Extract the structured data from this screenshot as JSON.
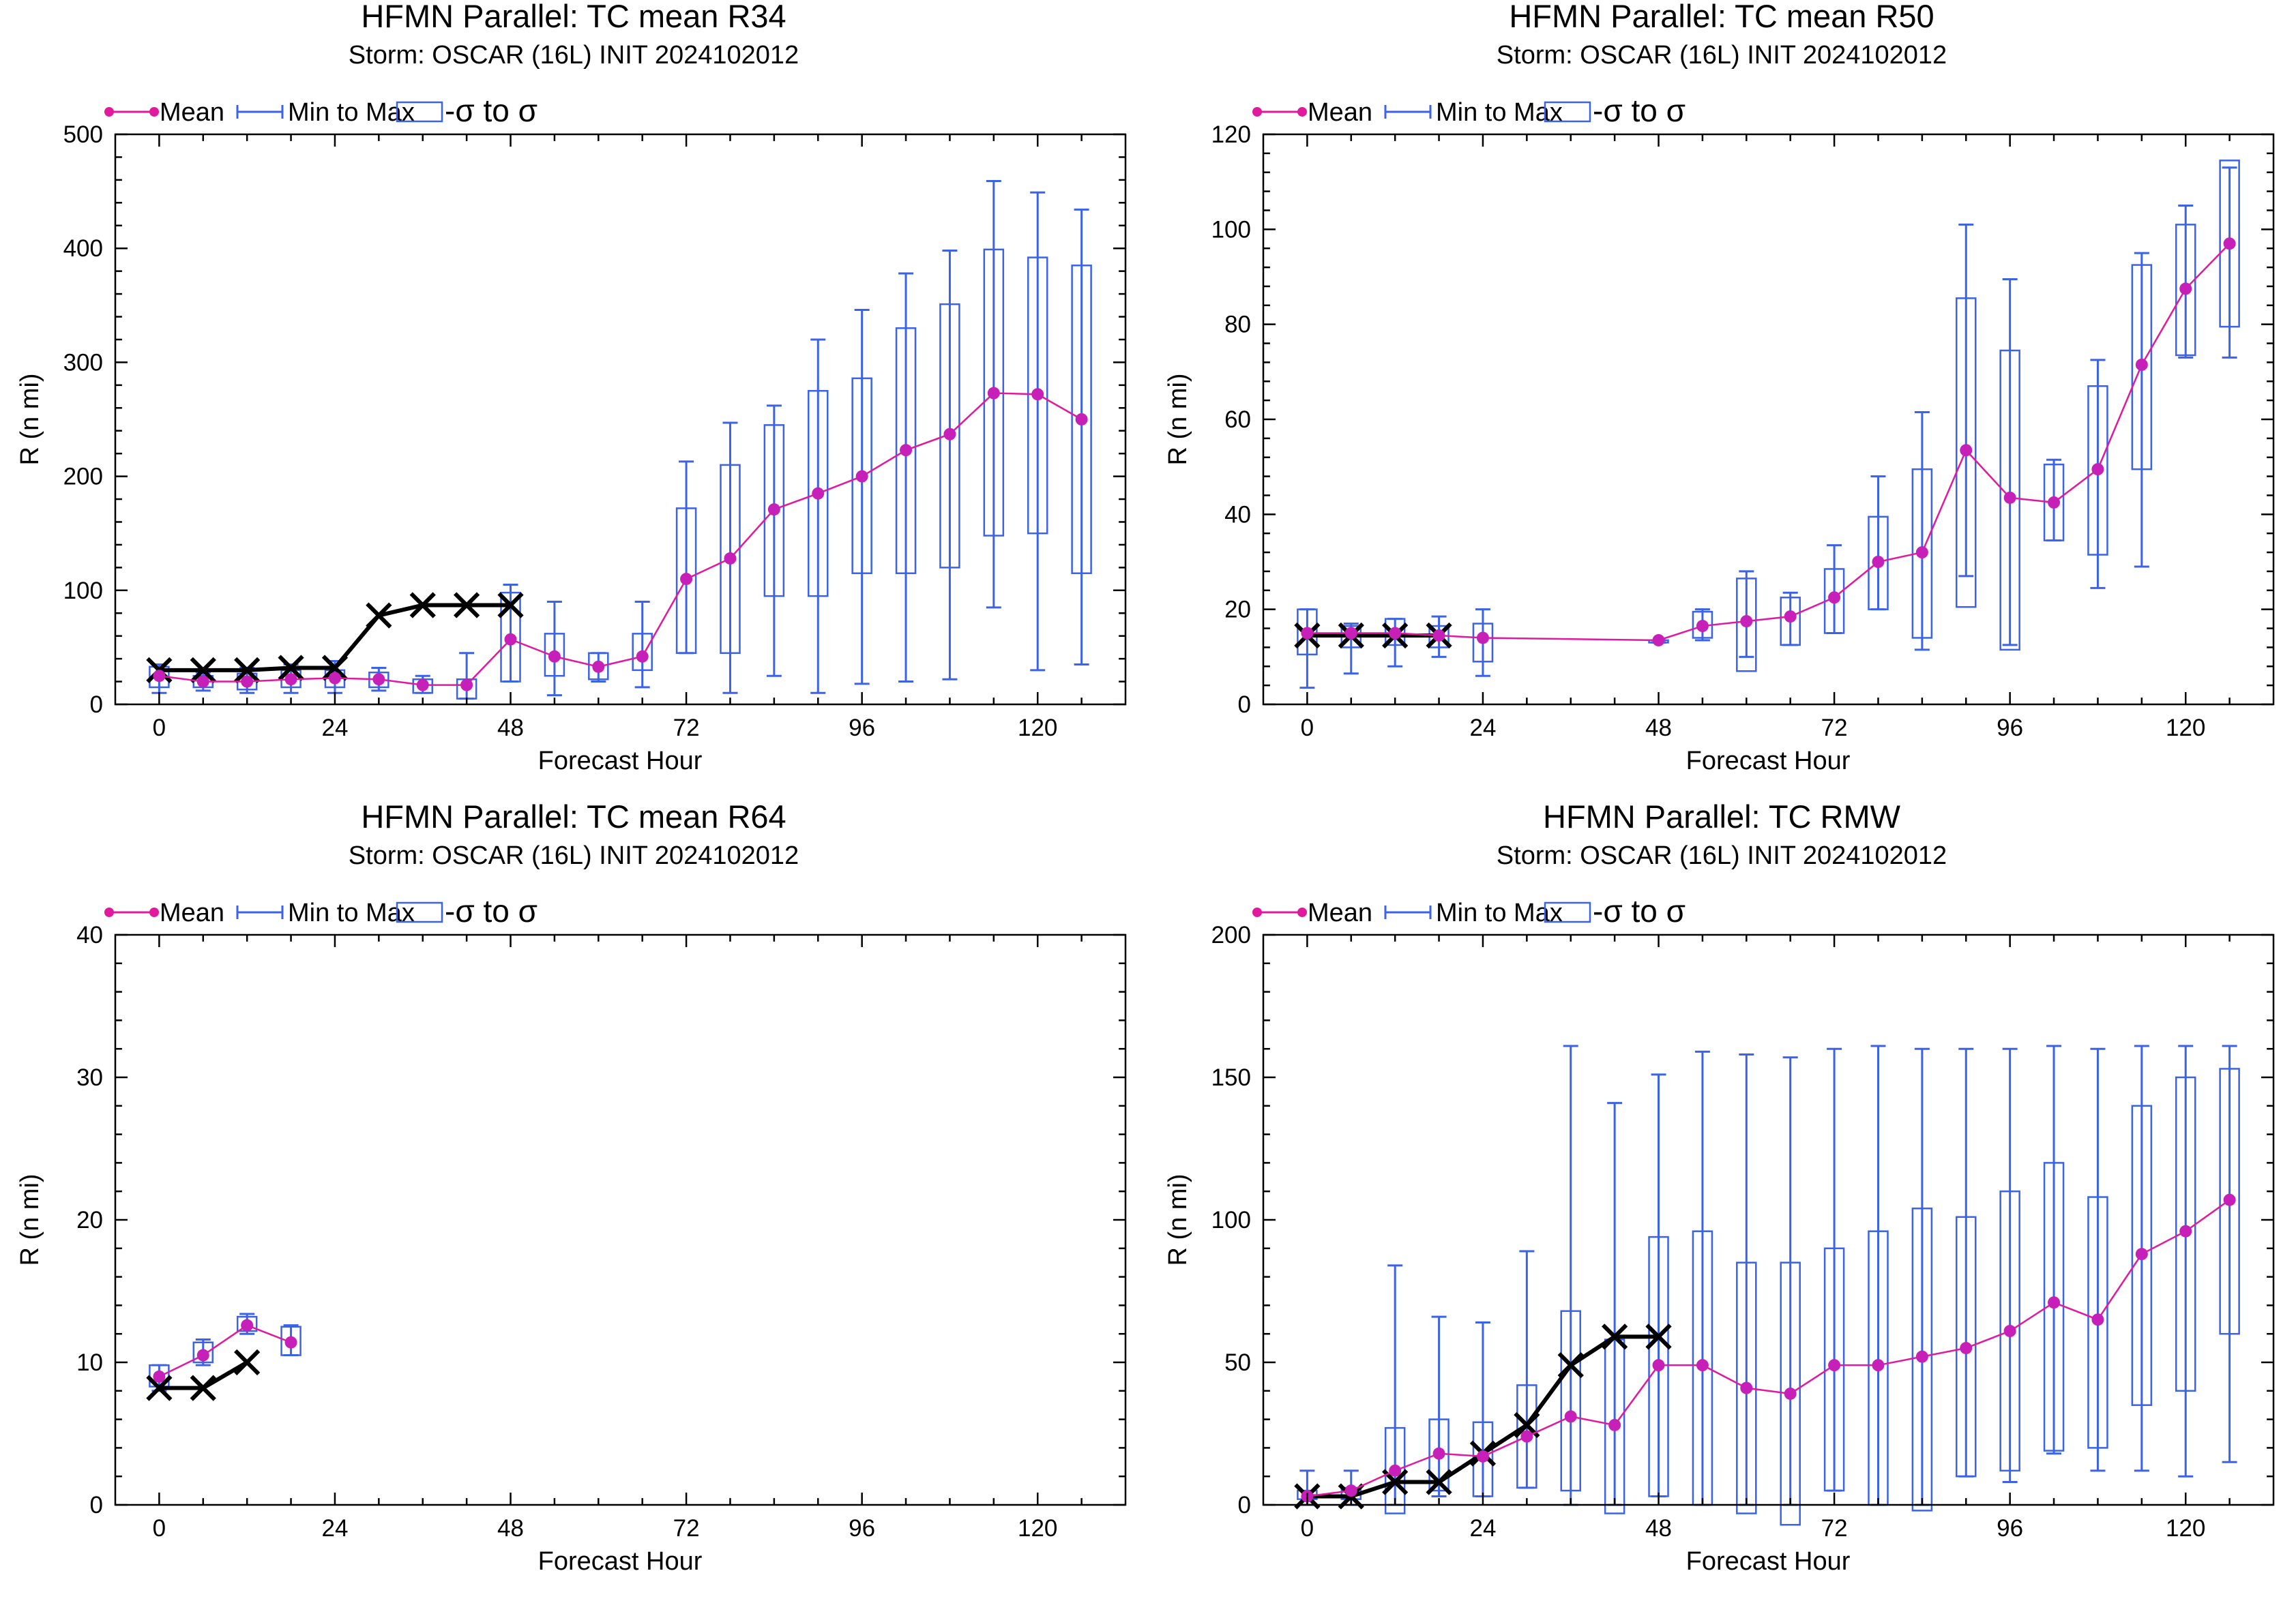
{
  "legend": {
    "mean_label": "Mean",
    "minmax_label": "Min to Max",
    "sigma_label": "-σ to σ"
  },
  "colors": {
    "mean": "#e0199d",
    "mean_dot": "#c620b9",
    "minmax": "#3b62e8",
    "box": "#3b62e8",
    "obs": "#000000"
  },
  "charts": [
    {
      "title": "HFMN Parallel: TC mean R34",
      "subtitle": "Storm: OSCAR (16L) INIT 2024102012",
      "xlabel": "Forecast Hour",
      "ylabel": "R (n mi)",
      "ylim": [
        0,
        500
      ],
      "yticks": [
        0,
        100,
        200,
        300,
        400,
        500
      ],
      "ytick_labels": [
        "0",
        "100",
        "200",
        "300",
        "400",
        "500"
      ]
    },
    {
      "title": "HFMN Parallel: TC mean R50",
      "subtitle": "Storm: OSCAR (16L) INIT 2024102012",
      "xlabel": "Forecast Hour",
      "ylabel": "R (n mi)",
      "ylim": [
        0,
        120
      ],
      "yticks": [
        0,
        20,
        40,
        60,
        80,
        100,
        120
      ],
      "ytick_labels": [
        "0",
        "20",
        "40",
        "60",
        "80",
        "100",
        "120"
      ]
    },
    {
      "title": "HFMN Parallel: TC mean R64",
      "subtitle": "Storm: OSCAR (16L) INIT 2024102012",
      "xlabel": "Forecast Hour",
      "ylabel": "R (n mi)",
      "ylim": [
        0,
        40
      ],
      "yticks": [
        0,
        10,
        20,
        30,
        40
      ],
      "ytick_labels": [
        "0",
        "10",
        "20",
        "30",
        "40"
      ]
    },
    {
      "title": "HFMN Parallel: TC RMW",
      "subtitle": "Storm: OSCAR (16L) INIT 2024102012",
      "xlabel": "Forecast Hour",
      "ylabel": "R (n mi)",
      "ylim": [
        0,
        200
      ],
      "yticks": [
        0,
        50,
        100,
        150,
        200
      ],
      "ytick_labels": [
        "0",
        "50",
        "100",
        "150",
        "200"
      ]
    }
  ],
  "chart_data": [
    {
      "type": "line",
      "title": "HFMN Parallel: TC mean R34",
      "subtitle": "Storm: OSCAR (16L) INIT 2024102012",
      "xlabel": "Forecast Hour",
      "ylabel": "R (n mi)",
      "xlim": [
        -6,
        132
      ],
      "ylim": [
        0,
        500
      ],
      "xticks": [
        0,
        24,
        48,
        72,
        96,
        120
      ],
      "yticks": [
        0,
        100,
        200,
        300,
        400,
        500
      ],
      "mean": {
        "x": [
          0,
          6,
          12,
          18,
          24,
          30,
          36,
          42,
          48,
          54,
          60,
          66,
          72,
          78,
          84,
          90,
          96,
          102,
          108,
          114,
          120,
          126
        ],
        "y": [
          25,
          20,
          20,
          22,
          23,
          22,
          17,
          17,
          57,
          42,
          33,
          42,
          110,
          128,
          171,
          185,
          200,
          223,
          237,
          273,
          272,
          250
        ]
      },
      "minmax": {
        "x": [
          0,
          6,
          12,
          18,
          24,
          30,
          36,
          42,
          48,
          54,
          60,
          66,
          72,
          78,
          84,
          90,
          96,
          102,
          108,
          114,
          120,
          126
        ],
        "min": [
          10,
          12,
          10,
          10,
          10,
          12,
          10,
          5,
          20,
          8,
          20,
          15,
          45,
          10,
          25,
          10,
          18,
          20,
          22,
          85,
          30,
          35
        ],
        "max": [
          35,
          28,
          32,
          35,
          38,
          32,
          25,
          45,
          105,
          90,
          45,
          90,
          213,
          247,
          262,
          320,
          346,
          378,
          398,
          459,
          449,
          434
        ]
      },
      "sigma": {
        "x": [
          0,
          6,
          12,
          18,
          24,
          30,
          36,
          42,
          48,
          54,
          60,
          66,
          72,
          78,
          84,
          90,
          96,
          102,
          108,
          114,
          120,
          126
        ],
        "low": [
          15,
          15,
          13,
          15,
          15,
          15,
          10,
          5,
          20,
          25,
          22,
          30,
          45,
          45,
          95,
          95,
          115,
          115,
          120,
          148,
          150,
          115
        ],
        "high": [
          33,
          25,
          27,
          30,
          30,
          28,
          22,
          22,
          98,
          62,
          45,
          62,
          172,
          210,
          245,
          275,
          286,
          330,
          351,
          399,
          392,
          385
        ]
      },
      "observed": {
        "x": [
          0,
          6,
          12,
          18,
          24,
          30,
          36,
          42,
          48
        ],
        "y": [
          30,
          30,
          30,
          32,
          32,
          78,
          87,
          87,
          87
        ]
      }
    },
    {
      "type": "line",
      "title": "HFMN Parallel: TC mean R50",
      "subtitle": "Storm: OSCAR (16L) INIT 2024102012",
      "xlabel": "Forecast Hour",
      "ylabel": "R (n mi)",
      "xlim": [
        -6,
        132
      ],
      "ylim": [
        0,
        120
      ],
      "xticks": [
        0,
        24,
        48,
        72,
        96,
        120
      ],
      "yticks": [
        0,
        20,
        40,
        60,
        80,
        100,
        120
      ],
      "mean": {
        "x": [
          0,
          6,
          12,
          18,
          24,
          48,
          54,
          60,
          66,
          72,
          78,
          84,
          90,
          96,
          102,
          108,
          114,
          120,
          126
        ],
        "y": [
          15,
          15,
          15,
          14.5,
          14,
          13.5,
          16.5,
          17.5,
          18.5,
          22.5,
          30,
          32,
          53.5,
          43.5,
          42.5,
          49.5,
          71.5,
          87.5,
          97
        ]
      },
      "minmax": {
        "x": [
          0,
          6,
          12,
          18,
          24,
          48,
          54,
          60,
          66,
          72,
          78,
          84,
          90,
          96,
          102,
          108,
          114,
          120,
          126
        ],
        "min": [
          3.5,
          6.5,
          8,
          10,
          6,
          13,
          13.5,
          10,
          12.5,
          15,
          20,
          11.5,
          27,
          12.5,
          34.5,
          24.5,
          29,
          73,
          73
        ],
        "max": [
          20,
          17,
          18,
          18.5,
          20,
          13.5,
          20,
          28,
          23.5,
          33.5,
          48,
          61.5,
          101,
          89.5,
          51.5,
          72.5,
          95,
          105,
          113
        ]
      },
      "sigma": {
        "x": [
          0,
          6,
          12,
          18,
          24,
          48,
          54,
          60,
          66,
          72,
          78,
          84,
          90,
          96,
          102,
          108,
          114,
          120,
          126
        ],
        "low": [
          10.5,
          12,
          12.5,
          12,
          9,
          13,
          14,
          7,
          12.5,
          15,
          20,
          14,
          20.5,
          11.5,
          34.5,
          31.5,
          49.5,
          73.5,
          79.5
        ],
        "high": [
          20,
          16.5,
          18,
          16.5,
          17,
          13.5,
          19.5,
          26.5,
          22.5,
          28.5,
          39.5,
          49.5,
          85.5,
          74.5,
          50.5,
          67,
          92.5,
          101,
          114.5
        ]
      },
      "observed": {
        "x": [
          0,
          6,
          12,
          18
        ],
        "y": [
          14.5,
          14.5,
          14.5,
          14.5
        ]
      }
    },
    {
      "type": "line",
      "title": "HFMN Parallel: TC mean R64",
      "subtitle": "Storm: OSCAR (16L) INIT 2024102012",
      "xlabel": "Forecast Hour",
      "ylabel": "R (n mi)",
      "xlim": [
        -6,
        132
      ],
      "ylim": [
        0,
        40
      ],
      "xticks": [
        0,
        24,
        48,
        72,
        96,
        120
      ],
      "yticks": [
        0,
        10,
        20,
        30,
        40
      ],
      "mean": {
        "x": [
          0,
          6,
          12,
          18
        ],
        "y": [
          9,
          10.5,
          12.6,
          11.4
        ]
      },
      "minmax": {
        "x": [
          0,
          6,
          12,
          18
        ],
        "min": [
          8,
          9.8,
          12,
          10.5
        ],
        "max": [
          9.8,
          11.6,
          13.4,
          12.6
        ]
      },
      "sigma": {
        "x": [
          0,
          6,
          12,
          18
        ],
        "low": [
          8.3,
          10,
          12.2,
          10.5
        ],
        "high": [
          9.8,
          11.4,
          13.2,
          12.5
        ]
      },
      "observed": {
        "x": [
          0,
          6,
          12
        ],
        "y": [
          8.2,
          8.2,
          10
        ]
      }
    },
    {
      "type": "line",
      "title": "HFMN Parallel: TC RMW",
      "subtitle": "Storm: OSCAR (16L) INIT 2024102012",
      "xlabel": "Forecast Hour",
      "ylabel": "R (n mi)",
      "xlim": [
        -6,
        132
      ],
      "ylim": [
        0,
        200
      ],
      "xticks": [
        0,
        24,
        48,
        72,
        96,
        120
      ],
      "yticks": [
        0,
        50,
        100,
        150,
        200
      ],
      "mean": {
        "x": [
          0,
          6,
          12,
          18,
          24,
          30,
          36,
          42,
          48,
          54,
          60,
          66,
          72,
          78,
          84,
          90,
          96,
          102,
          108,
          114,
          120,
          126
        ],
        "y": [
          3,
          5,
          12,
          18,
          17,
          24,
          31,
          28,
          49,
          49,
          41,
          39,
          49,
          49,
          52,
          55,
          61,
          71,
          65,
          88,
          96,
          107
        ]
      },
      "minmax": {
        "x": [
          0,
          6,
          12,
          18,
          24,
          30,
          36,
          42,
          48,
          54,
          60,
          66,
          72,
          78,
          84,
          90,
          96,
          102,
          108,
          114,
          120,
          126
        ],
        "min": [
          0,
          0,
          0,
          3,
          3,
          6,
          0,
          0,
          3,
          0,
          0,
          0,
          5,
          0,
          0,
          10,
          8,
          18,
          12,
          12,
          10,
          15
        ],
        "max": [
          12,
          12,
          84,
          66,
          64,
          89,
          161,
          141,
          151,
          159,
          158,
          157,
          160,
          161,
          160,
          160,
          160,
          161,
          160,
          161,
          161,
          161
        ]
      },
      "sigma": {
        "x": [
          0,
          6,
          12,
          18,
          24,
          30,
          36,
          42,
          48,
          54,
          60,
          66,
          72,
          78,
          84,
          90,
          96,
          102,
          108,
          114,
          120,
          126
        ],
        "low": [
          2,
          2,
          -3,
          5,
          3,
          6,
          5,
          -3,
          3,
          0,
          -3,
          -7,
          5,
          0,
          -2,
          10,
          12,
          19,
          20,
          35,
          40,
          60
        ],
        "high": [
          5,
          6,
          27,
          30,
          29,
          42,
          68,
          58,
          94,
          96,
          85,
          85,
          90,
          96,
          104,
          101,
          110,
          120,
          108,
          140,
          150,
          153
        ]
      },
      "observed": {
        "x": [
          0,
          6,
          12,
          18,
          24,
          30,
          36,
          42,
          48
        ],
        "y": [
          3,
          3,
          8,
          8,
          18,
          28,
          49,
          59,
          59
        ]
      }
    }
  ]
}
